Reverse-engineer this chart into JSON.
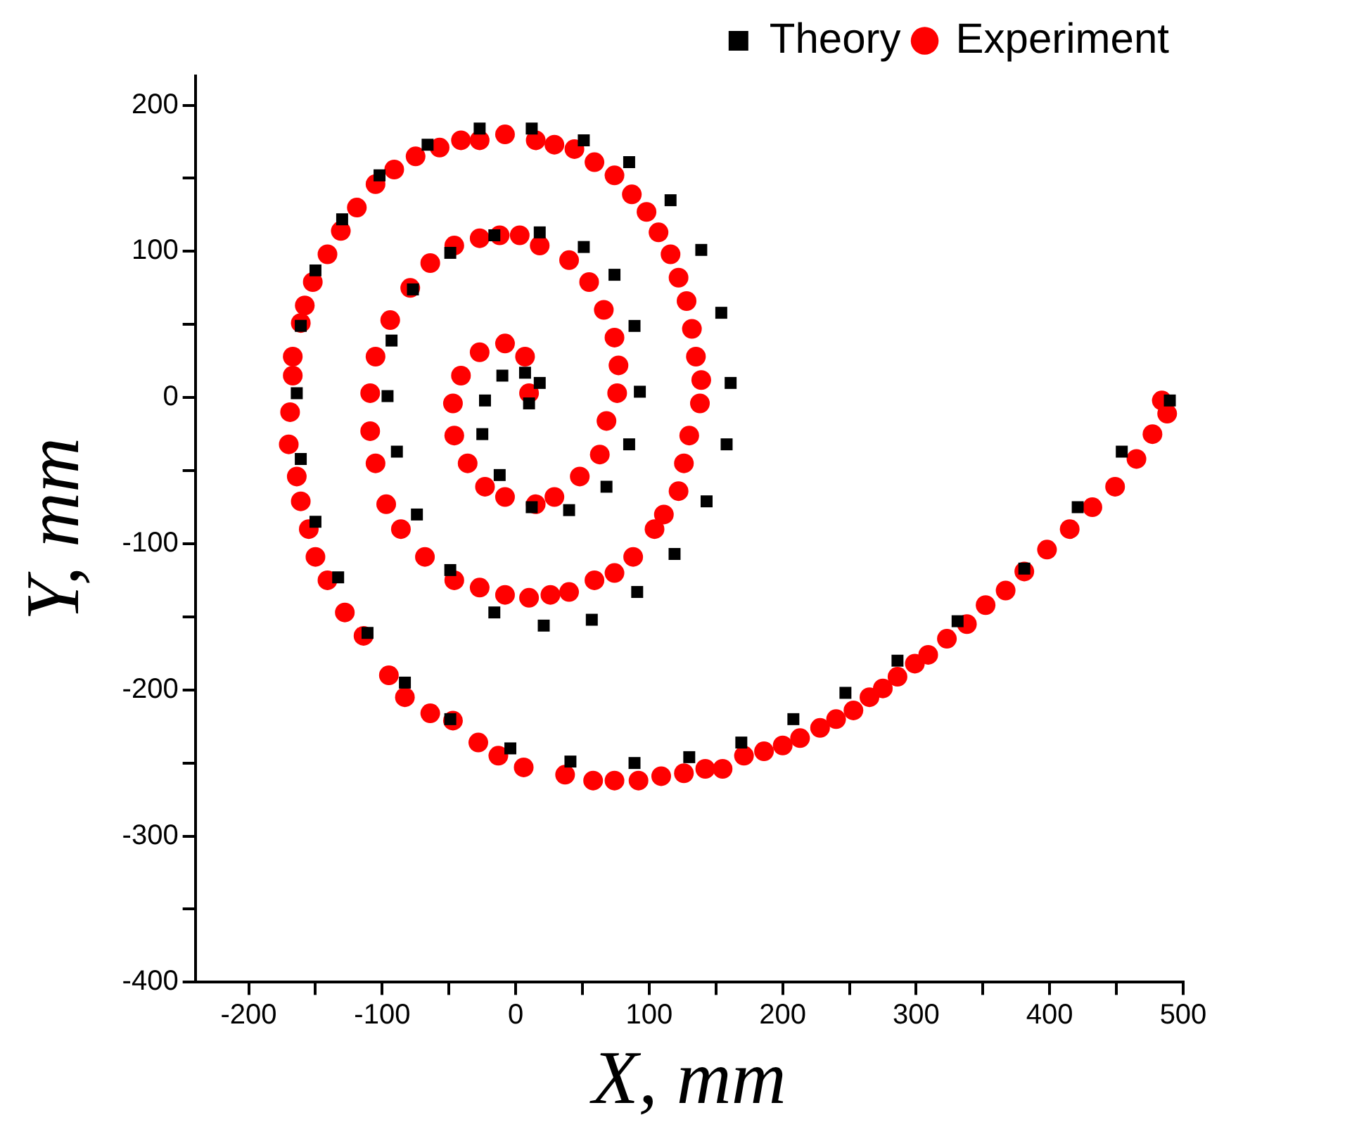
{
  "chart_data": {
    "type": "scatter",
    "xlabel": "X, mm",
    "ylabel": "Y, mm",
    "xlim": [
      -240,
      500
    ],
    "ylim": [
      -400,
      220
    ],
    "xticks": [
      {
        "value": -200,
        "label": "-200"
      },
      {
        "value": -150,
        "label": null
      },
      {
        "value": -100,
        "label": "-100"
      },
      {
        "value": -50,
        "label": null
      },
      0,
      {
        "value": 50,
        "label": null
      },
      100,
      {
        "value": 150,
        "label": null
      },
      200,
      {
        "value": 250,
        "label": null
      },
      300,
      {
        "value": 350,
        "label": null
      },
      400,
      {
        "value": 450,
        "label": null
      },
      500
    ],
    "yticks": [
      {
        "value": -400,
        "label": "-400"
      },
      {
        "value": -350,
        "label": null
      },
      {
        "value": -300,
        "label": "-300"
      },
      {
        "value": -250,
        "label": null
      },
      {
        "value": -200,
        "label": "-200"
      },
      {
        "value": -150,
        "label": null
      },
      {
        "value": -100,
        "label": "-100"
      },
      {
        "value": -50,
        "label": null
      },
      0,
      {
        "value": 50,
        "label": null
      },
      100,
      {
        "value": 150,
        "label": null
      },
      200
    ],
    "legend": "top right",
    "series": [
      {
        "name": "Theory",
        "color": "#000000",
        "marker": "square",
        "x": [
          10,
          18,
          7,
          -10,
          -23,
          -25,
          -12,
          12,
          40,
          68,
          85,
          93,
          89,
          74,
          51,
          18,
          -16,
          -49,
          -77,
          -93,
          -96,
          -89,
          -74,
          -49,
          -16,
          21,
          57,
          91,
          119,
          143,
          158,
          161,
          154,
          139,
          116,
          85,
          51,
          12,
          -27,
          -66,
          -102,
          -130,
          -150,
          -161,
          -164,
          -161,
          -150,
          -133,
          -111,
          -83,
          -49,
          -4,
          41,
          89,
          130,
          169,
          208,
          247,
          286,
          331,
          381,
          421,
          454,
          490
        ],
        "values": [
          -4,
          10,
          17,
          15,
          -2,
          -25,
          -53,
          -75,
          -77,
          -61,
          -32,
          4,
          49,
          84,
          103,
          113,
          111,
          99,
          74,
          39,
          1,
          -37,
          -80,
          -118,
          -147,
          -156,
          -152,
          -133,
          -107,
          -71,
          -32,
          10,
          58,
          101,
          135,
          161,
          176,
          184,
          184,
          173,
          152,
          122,
          87,
          49,
          3,
          -42,
          -85,
          -123,
          -161,
          -195,
          -220,
          -240,
          -249,
          -250,
          -246,
          -236,
          -220,
          -202,
          -180,
          -153,
          -117,
          -75,
          -37,
          -2
        ]
      },
      {
        "name": "Experiment",
        "color": "#ff0000",
        "marker": "circle",
        "x": [
          10,
          7,
          -8,
          -27,
          -41,
          -47,
          -46,
          -36,
          -23,
          -8,
          15,
          29,
          48,
          63,
          68,
          76,
          77,
          74,
          66,
          55,
          40,
          18,
          3,
          -12,
          -27,
          -46,
          -64,
          -79,
          -94,
          -105,
          -109,
          -109,
          -105,
          -97,
          -86,
          -68,
          -46,
          -27,
          -8,
          10,
          26,
          40,
          59,
          74,
          88,
          104,
          111,
          122,
          126,
          130,
          138,
          139,
          135,
          132,
          128,
          122,
          116,
          107,
          98,
          87,
          74,
          59,
          44,
          29,
          15,
          -8,
          -27,
          -41,
          -57,
          -75,
          -91,
          -105,
          -119,
          -131,
          -141,
          -152,
          -158,
          -161,
          -167,
          -167,
          -169,
          -170,
          -164,
          -161,
          -155,
          -150,
          -141,
          -128,
          -114,
          -95,
          -83,
          -64,
          -47,
          -28,
          -13,
          6,
          37,
          58,
          74,
          92,
          109,
          126,
          142,
          155,
          171,
          186,
          200,
          213,
          228,
          240,
          253,
          265,
          275,
          286,
          299,
          309,
          323,
          338,
          352,
          367,
          381,
          398,
          415,
          432,
          449,
          465,
          477,
          488,
          484
        ],
        "values": [
          3,
          28,
          37,
          31,
          15,
          -4,
          -26,
          -45,
          -61,
          -68,
          -73,
          -68,
          -54,
          -39,
          -16,
          3,
          22,
          41,
          60,
          79,
          94,
          104,
          111,
          111,
          109,
          104,
          92,
          75,
          53,
          28,
          3,
          -23,
          -45,
          -73,
          -90,
          -109,
          -125,
          -130,
          -135,
          -137,
          -135,
          -133,
          -125,
          -120,
          -109,
          -90,
          -80,
          -64,
          -45,
          -26,
          -4,
          12,
          28,
          47,
          66,
          82,
          98,
          113,
          127,
          139,
          152,
          161,
          170,
          173,
          176,
          180,
          176,
          176,
          171,
          165,
          156,
          146,
          130,
          114,
          98,
          79,
          63,
          51,
          28,
          15,
          -10,
          -32,
          -54,
          -71,
          -90,
          -109,
          -125,
          -147,
          -163,
          -190,
          -205,
          -216,
          -221,
          -236,
          -245,
          -253,
          -258,
          -262,
          -262,
          -262,
          -259,
          -257,
          -254,
          -254,
          -245,
          -242,
          -238,
          -233,
          -226,
          -220,
          -214,
          -205,
          -199,
          -191,
          -182,
          -176,
          -165,
          -155,
          -142,
          -132,
          -119,
          -104,
          -90,
          -75,
          -61,
          -42,
          -25,
          -11,
          -2
        ]
      }
    ]
  }
}
